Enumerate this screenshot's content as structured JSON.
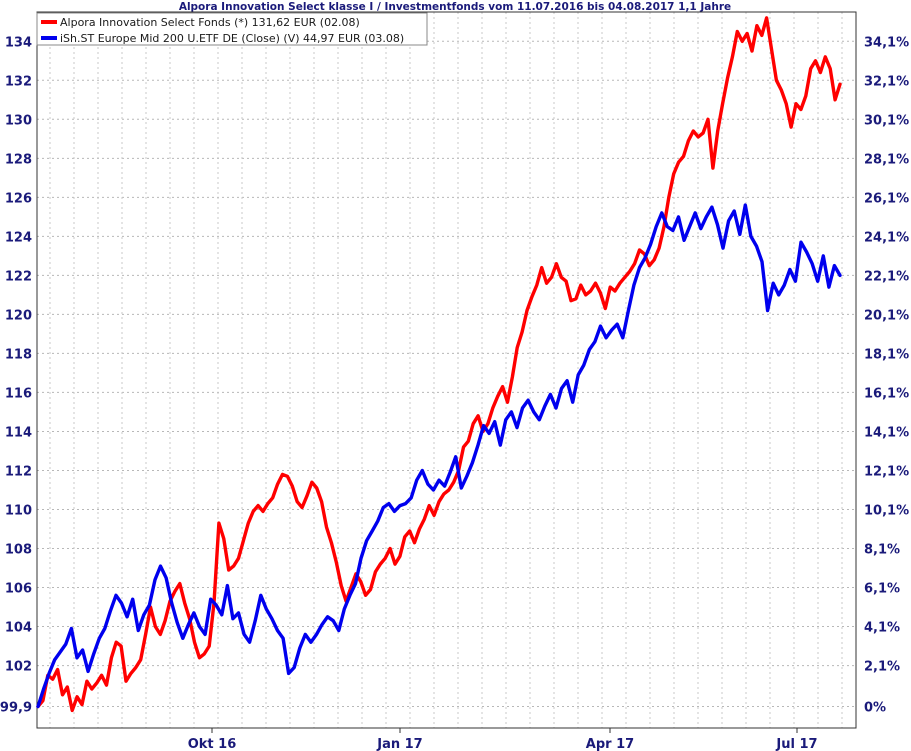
{
  "chart_data": {
    "type": "line",
    "title": "Alpora Innovation Select klasse I / Investmentfonds vom 11.07.2016 bis 04.08.2017 1,1 Jahre",
    "x_tick_labels": [
      "Okt 16",
      "Jan 17",
      "Apr 17",
      "Jul 17"
    ],
    "ylim_left": [
      98.8,
      135.5
    ],
    "y_ticks_left": [
      "99,9",
      "102",
      "104",
      "106",
      "108",
      "110",
      "112",
      "114",
      "116",
      "118",
      "120",
      "122",
      "124",
      "126",
      "128",
      "130",
      "132",
      "134"
    ],
    "y_ticks_right": [
      "0%",
      "2,1%",
      "4,1%",
      "6,1%",
      "8,1%",
      "10,1%",
      "12,1%",
      "14,1%",
      "16,1%",
      "18,1%",
      "20,1%",
      "22,1%",
      "24,1%",
      "26,1%",
      "28,1%",
      "30,1%",
      "32,1%",
      "34,1%"
    ],
    "grid": true,
    "legend_position": "top-left",
    "series": [
      {
        "name": "Alpora Innovation Select Fonds (*) 131,62 EUR (02.08)",
        "color": "#ff0000",
        "values": [
          99.9,
          100.2,
          101.5,
          101.3,
          101.8,
          100.5,
          100.9,
          99.7,
          100.4,
          100.0,
          101.2,
          100.8,
          101.1,
          101.5,
          101.0,
          102.4,
          103.2,
          103.0,
          101.2,
          101.6,
          101.9,
          102.3,
          103.6,
          105.0,
          104.0,
          103.6,
          104.3,
          105.3,
          105.8,
          106.2,
          105.2,
          104.4,
          103.2,
          102.4,
          102.6,
          103.0,
          105.2,
          109.3,
          108.5,
          106.9,
          107.1,
          107.5,
          108.4,
          109.3,
          109.9,
          110.2,
          109.9,
          110.3,
          110.6,
          111.3,
          111.8,
          111.7,
          111.2,
          110.4,
          110.1,
          110.7,
          111.4,
          111.1,
          110.4,
          109.1,
          108.3,
          107.3,
          106.1,
          105.3,
          106.0,
          106.7,
          106.3,
          105.6,
          105.9,
          106.8,
          107.2,
          107.5,
          108.0,
          107.2,
          107.6,
          108.6,
          108.9,
          108.3,
          109.0,
          109.5,
          110.2,
          109.7,
          110.4,
          110.8,
          111.0,
          111.4,
          112.0,
          113.2,
          113.5,
          114.4,
          114.8,
          114.0,
          114.4,
          115.2,
          115.8,
          116.3,
          115.5,
          116.8,
          118.3,
          119.1,
          120.2,
          120.9,
          121.5,
          122.4,
          121.6,
          121.9,
          122.6,
          121.9,
          121.7,
          120.7,
          120.8,
          121.5,
          121.0,
          121.2,
          121.6,
          121.1,
          120.3,
          121.4,
          121.2,
          121.6,
          121.9,
          122.2,
          122.6,
          123.3,
          123.1,
          122.5,
          122.8,
          123.4,
          124.5,
          126.0,
          127.2,
          127.8,
          128.1,
          128.9,
          129.4,
          129.1,
          129.3,
          130.0,
          127.5,
          129.4,
          130.8,
          132.1,
          133.2,
          134.5,
          134.0,
          134.4,
          133.5,
          134.8,
          134.3,
          135.2,
          133.6,
          132.0,
          131.5,
          130.8,
          129.6,
          130.8,
          130.5,
          131.2,
          132.6,
          133.0,
          132.4,
          133.2,
          132.6,
          131.0,
          131.8
        ]
      },
      {
        "name": "iSh.ST Europe Mid 200 U.ETF DE (Close) (V) 44,97 EUR (03.08)",
        "color": "#0000ee",
        "values": [
          99.9,
          100.8,
          101.6,
          102.3,
          102.7,
          103.1,
          103.9,
          102.4,
          102.8,
          101.7,
          102.6,
          103.4,
          103.9,
          104.8,
          105.6,
          105.2,
          104.5,
          105.4,
          103.8,
          104.6,
          105.1,
          106.4,
          107.1,
          106.5,
          105.2,
          104.2,
          103.4,
          104.1,
          104.7,
          104.0,
          103.6,
          105.4,
          105.1,
          104.6,
          106.1,
          104.4,
          104.7,
          103.6,
          103.2,
          104.3,
          105.6,
          104.9,
          104.4,
          103.8,
          103.4,
          101.6,
          101.9,
          102.9,
          103.6,
          103.2,
          103.6,
          104.1,
          104.5,
          104.3,
          103.8,
          104.9,
          105.6,
          106.2,
          107.5,
          108.4,
          108.9,
          109.4,
          110.1,
          110.3,
          109.9,
          110.2,
          110.3,
          110.6,
          111.5,
          112.0,
          111.3,
          111.0,
          111.5,
          111.2,
          111.9,
          112.7,
          111.1,
          111.7,
          112.4,
          113.3,
          114.3,
          113.9,
          114.5,
          113.3,
          114.6,
          115.0,
          114.2,
          115.2,
          115.6,
          115.0,
          114.6,
          115.3,
          115.9,
          115.2,
          116.2,
          116.6,
          115.5,
          116.9,
          117.4,
          118.2,
          118.6,
          119.4,
          118.8,
          119.2,
          119.5,
          118.8,
          120.2,
          121.5,
          122.4,
          122.9,
          123.6,
          124.5,
          125.2,
          124.5,
          124.3,
          125.0,
          123.8,
          124.5,
          125.2,
          124.4,
          125.0,
          125.5,
          124.6,
          123.4,
          124.8,
          125.3,
          124.1,
          125.6,
          124.0,
          123.5,
          122.7,
          120.2,
          121.6,
          121.0,
          121.5,
          122.3,
          121.7,
          123.7,
          123.2,
          122.6,
          121.7,
          123.0,
          121.4,
          122.5,
          122.0
        ]
      }
    ]
  }
}
